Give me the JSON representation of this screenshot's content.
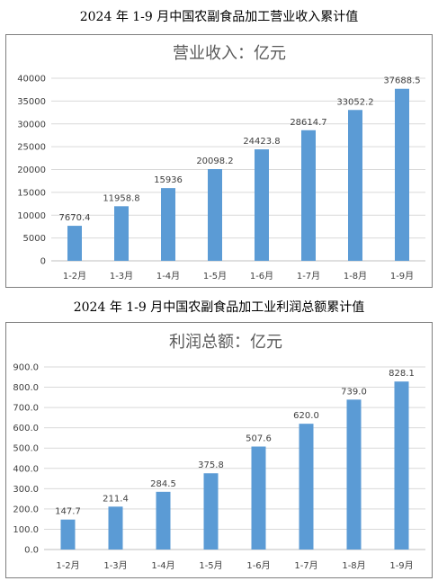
{
  "headings": {
    "revenue": "2024 年 1-9 月中国农副食品加工营业收入累计值",
    "profit": "2024 年 1-9 月中国农副食品加工业利润总额累计值"
  },
  "chart_data": [
    {
      "type": "bar",
      "title": "营业收入：亿元",
      "categories": [
        "1-2月",
        "1-3月",
        "1-4月",
        "1-5月",
        "1-6月",
        "1-7月",
        "1-8月",
        "1-9月"
      ],
      "values": [
        7670.4,
        11958.8,
        15936,
        20098.2,
        24423.8,
        28614.7,
        33052.2,
        37688.5
      ],
      "value_labels": [
        "7670.4",
        "11958.8",
        "15936",
        "20098.2",
        "24423.8",
        "28614.7",
        "33052.2",
        "37688.5"
      ],
      "ylim": [
        0,
        40000
      ],
      "yticks": [
        0,
        5000,
        10000,
        15000,
        20000,
        25000,
        30000,
        35000,
        40000
      ],
      "ytick_labels": [
        "0",
        "5000",
        "10000",
        "15000",
        "20000",
        "25000",
        "30000",
        "35000",
        "40000"
      ],
      "grid": true,
      "color": "#5b9bd5"
    },
    {
      "type": "bar",
      "title": "利润总额：亿元",
      "categories": [
        "1-2月",
        "1-3月",
        "1-4月",
        "1-5月",
        "1-6月",
        "1-7月",
        "1-8月",
        "1-9月"
      ],
      "values": [
        147.7,
        211.4,
        284.5,
        375.8,
        507.6,
        620.0,
        739.0,
        828.1
      ],
      "value_labels": [
        "147.7",
        "211.4",
        "284.5",
        "375.8",
        "507.6",
        "620.0",
        "739.0",
        "828.1"
      ],
      "ylim": [
        0,
        900
      ],
      "yticks": [
        0,
        100,
        200,
        300,
        400,
        500,
        600,
        700,
        800,
        900
      ],
      "ytick_labels": [
        "0.0",
        "100.0",
        "200.0",
        "300.0",
        "400.0",
        "500.0",
        "600.0",
        "700.0",
        "800.0",
        "900.0"
      ],
      "grid": true,
      "color": "#5b9bd5"
    }
  ]
}
